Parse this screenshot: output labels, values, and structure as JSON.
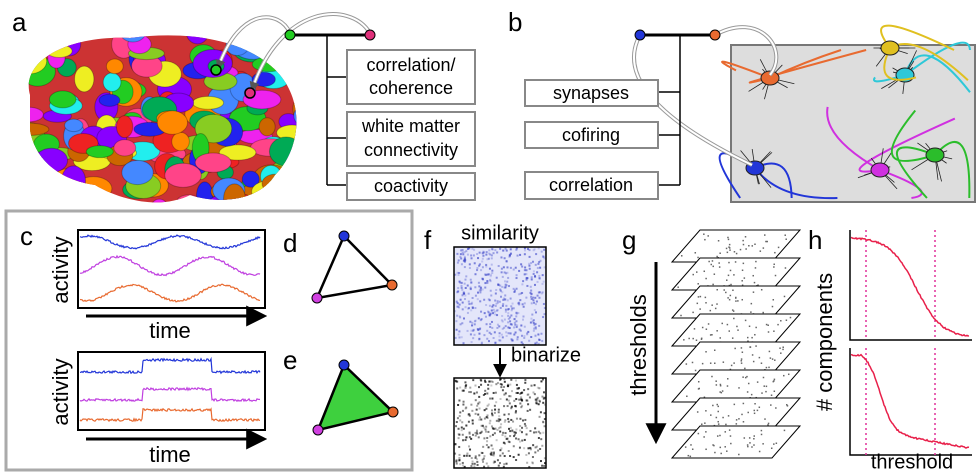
{
  "panel_labels": [
    "a",
    "b",
    "c",
    "d",
    "e",
    "f",
    "g",
    "h"
  ],
  "panel_a": {
    "boxes": [
      [
        "correlation/",
        "coherence"
      ],
      [
        "white matter",
        "connectivity"
      ],
      [
        "coactivity"
      ]
    ]
  },
  "panel_b": {
    "boxes": [
      "synapses",
      "cofiring",
      "correlation"
    ]
  },
  "panel_c": {
    "plots": [
      {
        "y_label": "activity",
        "x_label": "time"
      },
      {
        "y_label": "activity",
        "x_label": "time"
      }
    ]
  },
  "panel_f": {
    "title": "similarity",
    "arrow_label": "binarize"
  },
  "panel_g": {
    "axis_label": "thresholds"
  },
  "panel_h": {
    "y_label": "# components",
    "x_label": "threshold"
  }
}
